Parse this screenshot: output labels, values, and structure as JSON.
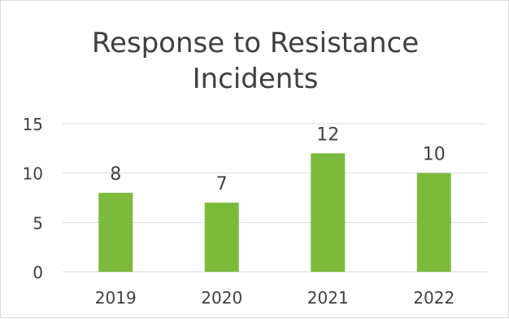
{
  "chart_data": {
    "type": "bar",
    "title_lines": [
      "Response to Resistance",
      "Incidents"
    ],
    "categories": [
      "2019",
      "2020",
      "2021",
      "2022"
    ],
    "values": [
      8,
      7,
      12,
      10
    ],
    "data_labels": [
      "8",
      "7",
      "12",
      "10"
    ],
    "xlabel": "",
    "ylabel": "",
    "ylim": [
      0,
      15
    ],
    "yticks": [
      0,
      5,
      10,
      15
    ],
    "ytick_labels": [
      "0",
      "5",
      "10",
      "15"
    ],
    "grid": true,
    "legend": "none",
    "colors": {
      "bar": "#7cba3c",
      "gridline": "#d9d9d9",
      "text": "#404040"
    }
  }
}
